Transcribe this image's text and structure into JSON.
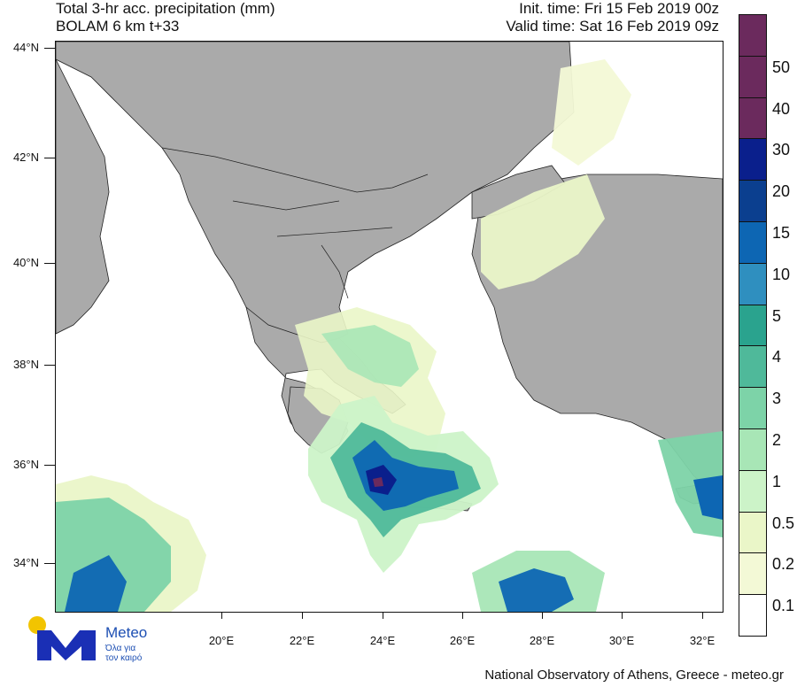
{
  "header": {
    "title_line1": "Total 3-hr acc. precipitation (mm)",
    "title_line2": "BOLAM 6 km t+33",
    "init_time": "Init. time: Fri 15 Feb 2019 00z",
    "valid_time": "Valid time: Sat 16 Feb 2019 09z"
  },
  "map": {
    "region": "Greece and Eastern Mediterranean",
    "land_color": "#aaaaaa",
    "sea_color": "#ffffff",
    "lat_labels": [
      "44°N",
      "42°N",
      "40°N",
      "38°N",
      "36°N",
      "34°N"
    ],
    "lon_labels": [
      "20°E",
      "22°E",
      "24°E",
      "26°E",
      "28°E",
      "30°E",
      "32°E"
    ]
  },
  "legend": {
    "levels": [
      {
        "label": "",
        "color": "#6b2a5d"
      },
      {
        "label": "50",
        "color": "#6b2a5d"
      },
      {
        "label": "40",
        "color": "#6b2a5d"
      },
      {
        "label": "30",
        "color": "#0a1f8c"
      },
      {
        "label": "20",
        "color": "#0b3f8f"
      },
      {
        "label": "15",
        "color": "#0d66b3"
      },
      {
        "label": "10",
        "color": "#2f8fbf"
      },
      {
        "label": "5",
        "color": "#2aa38e"
      },
      {
        "label": "4",
        "color": "#4fb99a"
      },
      {
        "label": "3",
        "color": "#7dd3a8"
      },
      {
        "label": "2",
        "color": "#a8e6b6"
      },
      {
        "label": "1",
        "color": "#ccf3c8"
      },
      {
        "label": "0.5",
        "color": "#eaf6c8"
      },
      {
        "label": "0.2",
        "color": "#f3f9d6"
      },
      {
        "label": "0.1",
        "color": "#ffffff"
      }
    ]
  },
  "logo": {
    "name": "Meteo",
    "tagline_line1": "Όλα για",
    "tagline_line2": "τον καιρό",
    "yellow": "#f2c400",
    "blue": "#1a2fb5"
  },
  "footer": {
    "credit": "National Observatory of Athens, Greece - meteo.gr"
  }
}
